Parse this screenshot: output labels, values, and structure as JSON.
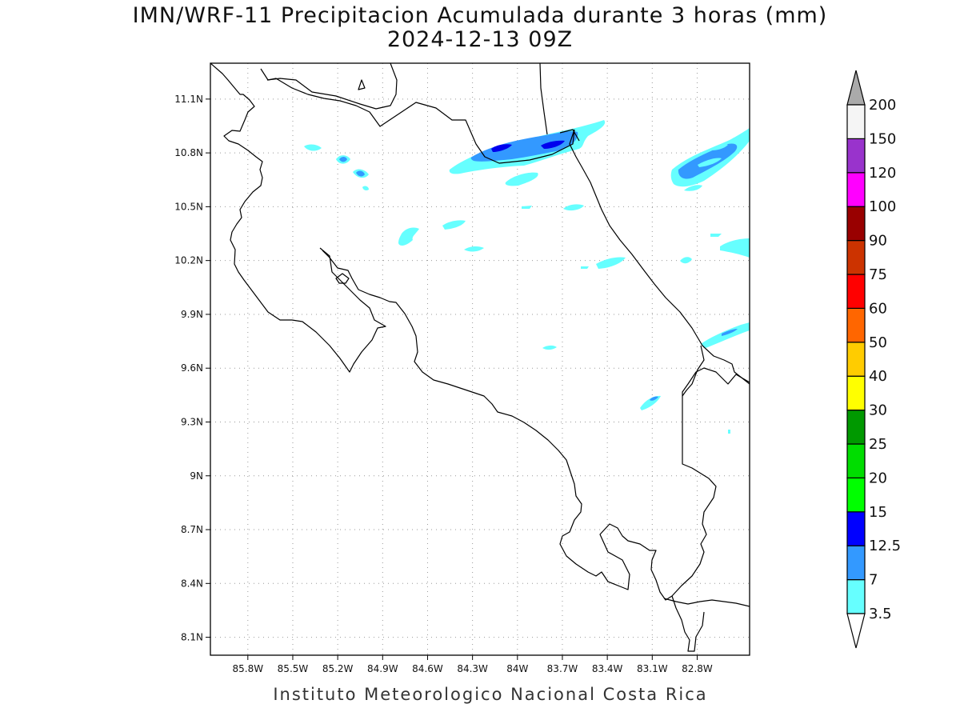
{
  "title": {
    "line1": "IMN/WRF-11 Precipitacion Acumulada durante 3 horas (mm)",
    "line2": "2024-12-13 09Z"
  },
  "credit": "Instituto Meteorologico Nacional Costa Rica",
  "map": {
    "lon_range": [
      -86.05,
      -82.45
    ],
    "lat_range": [
      8.0,
      11.3
    ],
    "lon_ticks": [
      {
        "value": -85.8,
        "label": "85.8W"
      },
      {
        "value": -85.5,
        "label": "85.5W"
      },
      {
        "value": -85.2,
        "label": "85.2W"
      },
      {
        "value": -84.9,
        "label": "84.9W"
      },
      {
        "value": -84.6,
        "label": "84.6W"
      },
      {
        "value": -84.3,
        "label": "84.3W"
      },
      {
        "value": -84.0,
        "label": "84W"
      },
      {
        "value": -83.7,
        "label": "83.7W"
      },
      {
        "value": -83.4,
        "label": "83.4W"
      },
      {
        "value": -83.1,
        "label": "83.1W"
      },
      {
        "value": -82.8,
        "label": "82.8W"
      }
    ],
    "lat_ticks": [
      {
        "value": 11.1,
        "label": "11.1N"
      },
      {
        "value": 10.8,
        "label": "10.8N"
      },
      {
        "value": 10.5,
        "label": "10.5N"
      },
      {
        "value": 10.2,
        "label": "10.2N"
      },
      {
        "value": 9.9,
        "label": "9.9N"
      },
      {
        "value": 9.6,
        "label": "9.6N"
      },
      {
        "value": 9.3,
        "label": "9.3N"
      },
      {
        "value": 9.0,
        "label": "9N"
      },
      {
        "value": 8.7,
        "label": "8.7N"
      },
      {
        "value": 8.4,
        "label": "8.4N"
      },
      {
        "value": 8.1,
        "label": "8.1N"
      }
    ],
    "grid": true
  },
  "colorbar": {
    "levels": [
      {
        "label": "3.5",
        "color": "#66ffff"
      },
      {
        "label": "7",
        "color": "#3399ff"
      },
      {
        "label": "12.5",
        "color": "#0000ff"
      },
      {
        "label": "15",
        "color": "#00ff00"
      },
      {
        "label": "20",
        "color": "#00dd00"
      },
      {
        "label": "25",
        "color": "#009900"
      },
      {
        "label": "30",
        "color": "#ffff00"
      },
      {
        "label": "40",
        "color": "#ffcc00"
      },
      {
        "label": "50",
        "color": "#ff6600"
      },
      {
        "label": "60",
        "color": "#ff0000"
      },
      {
        "label": "75",
        "color": "#cc3300"
      },
      {
        "label": "90",
        "color": "#990000"
      },
      {
        "label": "100",
        "color": "#ff00ff"
      },
      {
        "label": "120",
        "color": "#9933cc"
      },
      {
        "label": "150",
        "color": "#f5f5f5"
      },
      {
        "label": "200",
        "color": "#aaaaaa"
      }
    ]
  }
}
